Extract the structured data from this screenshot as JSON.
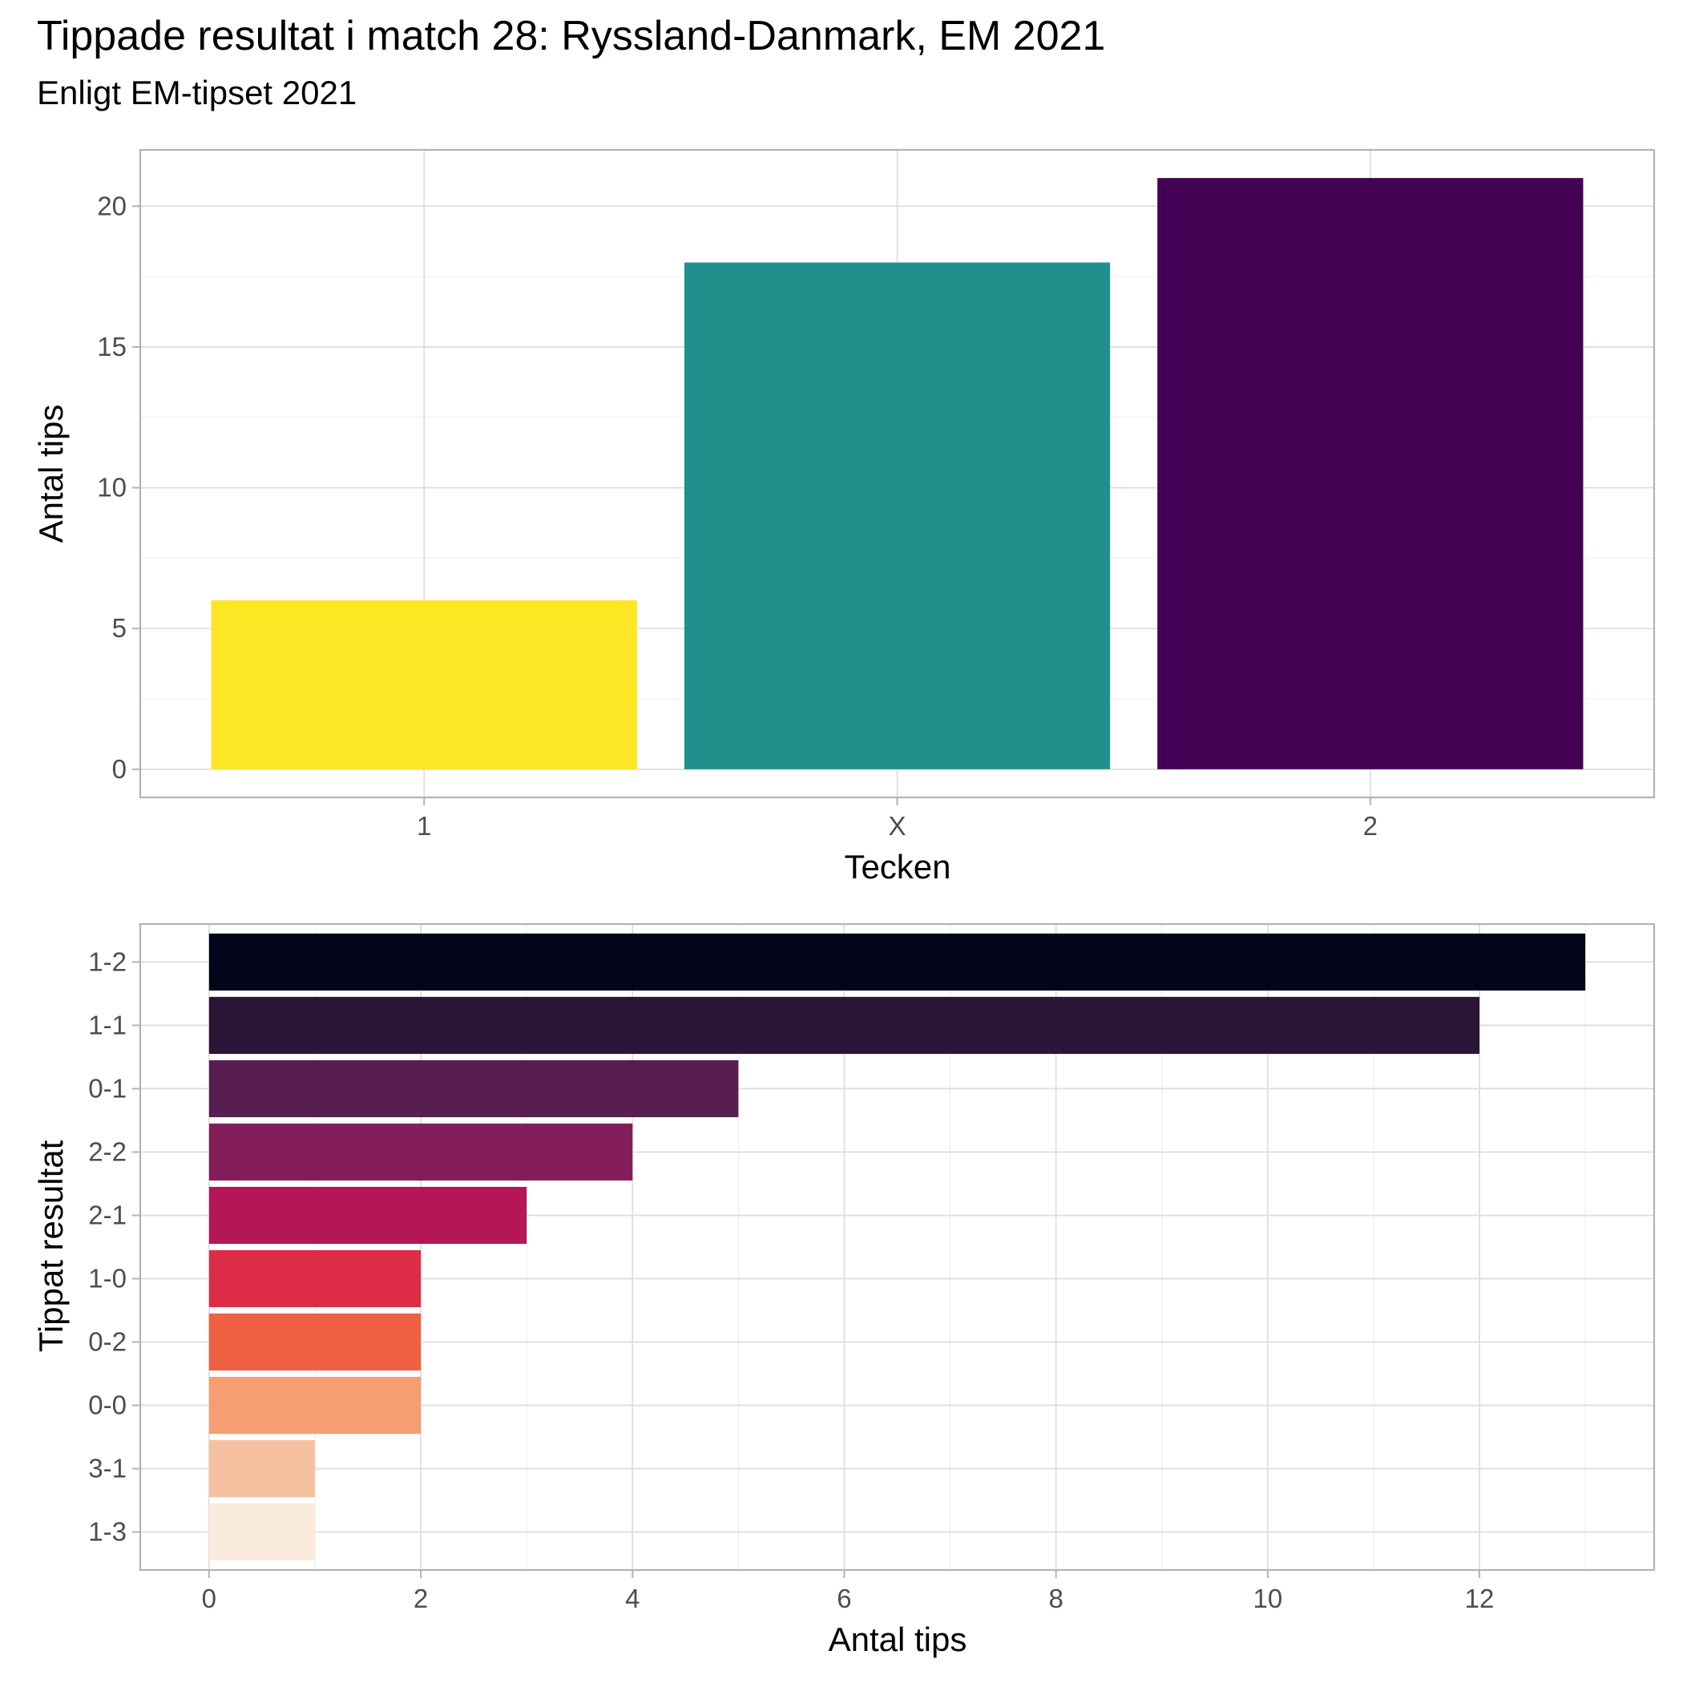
{
  "title": "Tippade resultat i match 28: Ryssland-Danmark, EM 2021",
  "subtitle": "Enligt EM-tipset 2021",
  "chart_data": [
    {
      "type": "bar",
      "orientation": "vertical",
      "categories": [
        "1",
        "X",
        "2"
      ],
      "values": [
        6,
        18,
        21
      ],
      "colors": [
        "#FDE725",
        "#21908C",
        "#440154"
      ],
      "xlabel": "Tecken",
      "ylabel": "Antal tips",
      "ylim": [
        -1,
        22
      ],
      "yticks": [
        0,
        5,
        10,
        15,
        20
      ],
      "grid": true,
      "legend": "none"
    },
    {
      "type": "bar",
      "orientation": "horizontal",
      "categories": [
        "1-2",
        "1-1",
        "0-1",
        "2-2",
        "2-1",
        "1-0",
        "0-2",
        "0-0",
        "3-1",
        "1-3"
      ],
      "values": [
        13,
        12,
        5,
        4,
        3,
        2,
        2,
        2,
        1,
        1
      ],
      "colors": [
        "#03051A",
        "#2B1637",
        "#571E4F",
        "#841E5A",
        "#B41658",
        "#DD2C45",
        "#F06043",
        "#F59E72",
        "#F6C19F",
        "#FAEBDD"
      ],
      "xlabel": "Antal tips",
      "ylabel": "Tippat resultat",
      "xlim": [
        -0.65,
        13.65
      ],
      "xticks": [
        0,
        2,
        4,
        6,
        8,
        10,
        12
      ],
      "grid": true,
      "legend": "none"
    }
  ]
}
